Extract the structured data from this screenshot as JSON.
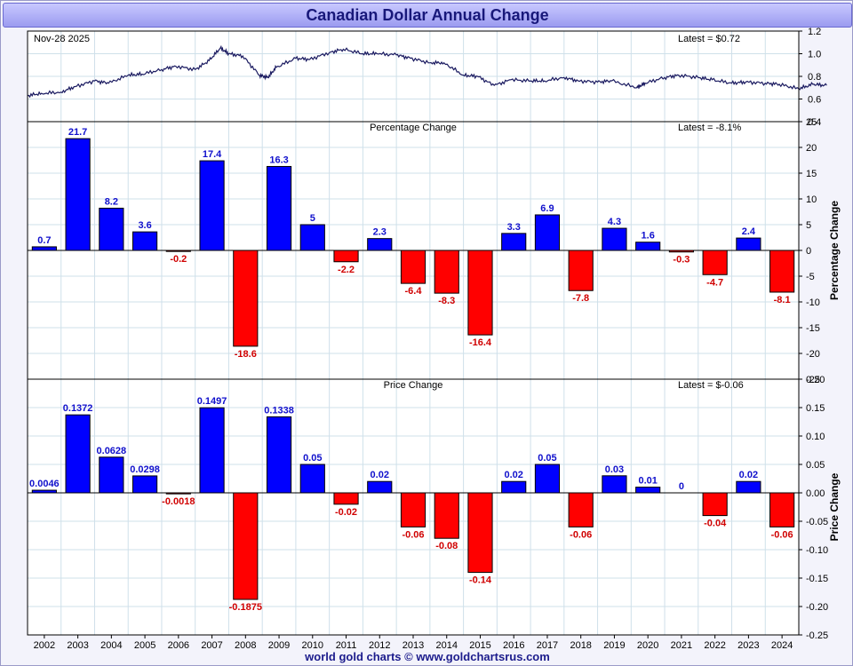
{
  "title": "Canadian Dollar Annual Change",
  "footer": "world gold charts © www.goldchartsrus.com",
  "colors": {
    "positive": "#0000ff",
    "negative": "#ff0000",
    "line": "#1a1a60",
    "grid": "#cfe0ea"
  },
  "years": [
    "2002",
    "2003",
    "2004",
    "2005",
    "2006",
    "2007",
    "2008",
    "2009",
    "2010",
    "2011",
    "2012",
    "2013",
    "2014",
    "2015",
    "2016",
    "2017",
    "2018",
    "2019",
    "2020",
    "2021",
    "2022",
    "2023",
    "2024"
  ],
  "chart_data": [
    {
      "type": "line",
      "date_label": "Nov-28  2025",
      "latest_label": "Latest = $0.72",
      "ylim": [
        0.4,
        1.2
      ],
      "yticks": [
        "0.4",
        "0.6",
        "0.8",
        "1.0",
        "1.2"
      ],
      "x": [
        "2002-01",
        "2002-06",
        "2003-01",
        "2003-06",
        "2004-01",
        "2004-06",
        "2005-01",
        "2005-06",
        "2006-01",
        "2006-06",
        "2007-01",
        "2007-06",
        "2007-10",
        "2008-01",
        "2008-06",
        "2008-12",
        "2009-03",
        "2009-06",
        "2010-01",
        "2010-06",
        "2011-01",
        "2011-06",
        "2012-01",
        "2012-06",
        "2013-01",
        "2013-06",
        "2014-01",
        "2014-06",
        "2015-01",
        "2015-06",
        "2015-12",
        "2016-06",
        "2017-01",
        "2017-06",
        "2018-01",
        "2018-06",
        "2019-01",
        "2019-06",
        "2020-03",
        "2020-06",
        "2021-01",
        "2021-06",
        "2022-01",
        "2022-06",
        "2023-01",
        "2023-06",
        "2024-01",
        "2024-06",
        "2025-01",
        "2025-06",
        "2025-11"
      ],
      "y": [
        0.63,
        0.65,
        0.66,
        0.71,
        0.76,
        0.74,
        0.81,
        0.82,
        0.86,
        0.89,
        0.86,
        0.94,
        1.05,
        1.0,
        0.98,
        0.81,
        0.79,
        0.88,
        0.96,
        0.95,
        1.01,
        1.04,
        1.0,
        1.0,
        0.99,
        0.96,
        0.92,
        0.92,
        0.81,
        0.8,
        0.72,
        0.77,
        0.76,
        0.76,
        0.79,
        0.76,
        0.75,
        0.76,
        0.7,
        0.74,
        0.79,
        0.81,
        0.79,
        0.77,
        0.74,
        0.75,
        0.74,
        0.73,
        0.69,
        0.73,
        0.72
      ]
    },
    {
      "type": "bar",
      "title": "Percentage Change",
      "latest_label": "Latest = -8.1%",
      "ylabel": "Percentage Change",
      "ylim": [
        -25,
        25
      ],
      "yticks": [
        "-25",
        "-20",
        "-15",
        "-10",
        "-5",
        "0",
        "5",
        "10",
        "15",
        "20",
        "25"
      ],
      "values": [
        0.7,
        21.7,
        8.2,
        3.6,
        -0.2,
        17.4,
        -18.6,
        16.3,
        5,
        -2.2,
        2.3,
        -6.4,
        -8.3,
        -16.4,
        3.3,
        6.9,
        -7.8,
        4.3,
        1.6,
        -0.3,
        -4.7,
        2.4,
        -8.1
      ],
      "labels": [
        "0.7",
        "21.7",
        "8.2",
        "3.6",
        "-0.2",
        "17.4",
        "-18.6",
        "16.3",
        "5",
        "-2.2",
        "2.3",
        "-6.4",
        "-8.3",
        "-16.4",
        "3.3",
        "6.9",
        "-7.8",
        "4.3",
        "1.6",
        "-0.3",
        "-4.7",
        "2.4",
        "-8.1"
      ]
    },
    {
      "type": "bar",
      "title": "Price Change",
      "latest_label": "Latest = $-0.06",
      "ylabel": "Price Change",
      "ylim": [
        -0.25,
        0.2
      ],
      "yticks": [
        "-0.25",
        "-0.20",
        "-0.15",
        "-0.10",
        "-0.05",
        "0.00",
        "0.05",
        "0.10",
        "0.15",
        "0.20"
      ],
      "values": [
        0.0046,
        0.1372,
        0.0628,
        0.0298,
        -0.0018,
        0.1497,
        -0.1875,
        0.1338,
        0.05,
        -0.02,
        0.02,
        -0.06,
        -0.08,
        -0.14,
        0.02,
        0.05,
        -0.06,
        0.03,
        0.01,
        0,
        -0.04,
        0.02,
        -0.06
      ],
      "labels": [
        "0.0046",
        "0.1372",
        "0.0628",
        "0.0298",
        "-0.0018",
        "0.1497",
        "-0.1875",
        "0.1338",
        "0.05",
        "-0.02",
        "0.02",
        "-0.06",
        "-0.08",
        "-0.14",
        "0.02",
        "0.05",
        "-0.06",
        "0.03",
        "0.01",
        "0",
        "-0.04",
        "0.02",
        "-0.06"
      ]
    }
  ]
}
